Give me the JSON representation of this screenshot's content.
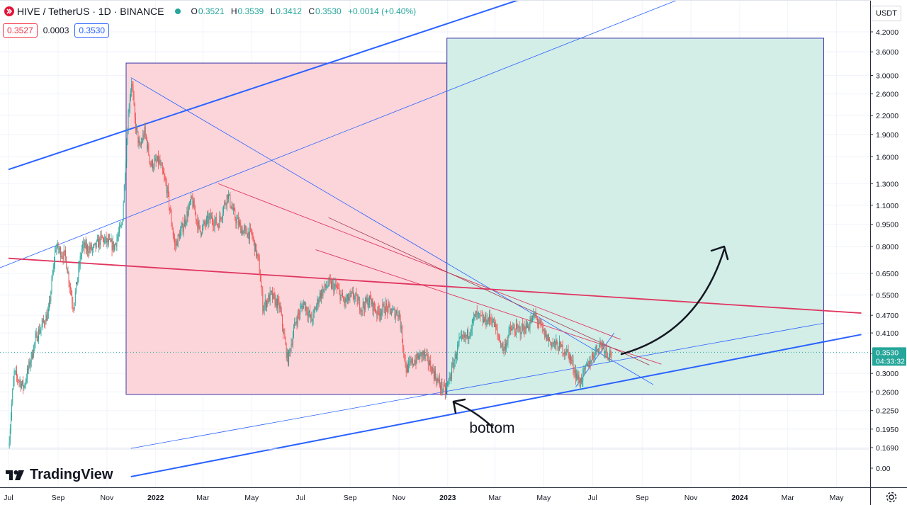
{
  "header": {
    "symbol": "HIVE / TetherUS · 1D · BINANCE",
    "o_label": "O",
    "o_value": "0.3521",
    "h_label": "H",
    "h_value": "0.3539",
    "l_label": "L",
    "l_value": "0.3412",
    "c_label": "C",
    "c_value": "0.3530",
    "change": "+0.0014 (+0.40%)"
  },
  "quote": {
    "sell": "0.3527",
    "spread": "0.0003",
    "buy": "0.3530"
  },
  "currency_button": "USDT",
  "brand": "TradingView",
  "last_price": {
    "value": "0.3530",
    "countdown": "04:33:32"
  },
  "colors": {
    "up": "#26a69a",
    "down": "#ef5350",
    "loss_box": "#fbd3d8",
    "target_box": "#d1ece6",
    "trend_blue": "#2962ff",
    "trend_red": "#e0355f"
  },
  "chart_data": {
    "type": "candlestick",
    "title": "HIVE / TetherUS · 1D · BINANCE",
    "y_scale": "log",
    "y_ticks": [
      "4.2000",
      "3.6000",
      "3.0000",
      "2.6000",
      "2.2000",
      "1.9000",
      "1.6000",
      "1.3000",
      "1.1000",
      "0.9500",
      "0.8000",
      "0.6500",
      "0.5500",
      "0.4700",
      "0.4100",
      "0.3500",
      "0.3000",
      "0.2600",
      "0.2250",
      "0.1950",
      "0.1690"
    ],
    "sub_y_tick": "0.00",
    "x_ticks": [
      "Jul",
      "Sep",
      "Nov",
      "2022",
      "Mar",
      "May",
      "Jul",
      "Sep",
      "Nov",
      "2023",
      "Mar",
      "May",
      "Jul",
      "Sep",
      "Nov",
      "2024",
      "Mar",
      "May"
    ],
    "x_bold_ticks": [
      "2022",
      "2023",
      "2024"
    ],
    "price_path": [
      [
        "2021-07-01",
        0.17
      ],
      [
        "2021-07-08",
        0.3
      ],
      [
        "2021-07-20",
        0.27
      ],
      [
        "2021-08-05",
        0.4
      ],
      [
        "2021-08-20",
        0.48
      ],
      [
        "2021-08-29",
        0.8
      ],
      [
        "2021-09-10",
        0.74
      ],
      [
        "2021-09-20",
        0.5
      ],
      [
        "2021-10-01",
        0.8
      ],
      [
        "2021-10-15",
        0.78
      ],
      [
        "2021-10-25",
        0.85
      ],
      [
        "2021-11-10",
        0.8
      ],
      [
        "2021-11-20",
        0.95
      ],
      [
        "2021-11-28",
        2.3
      ],
      [
        "2021-12-02",
        2.9
      ],
      [
        "2021-12-06",
        2.1
      ],
      [
        "2021-12-12",
        1.7
      ],
      [
        "2021-12-18",
        1.95
      ],
      [
        "2021-12-26",
        1.5
      ],
      [
        "2022-01-05",
        1.55
      ],
      [
        "2022-01-15",
        1.25
      ],
      [
        "2022-01-25",
        0.8
      ],
      [
        "2022-02-05",
        0.95
      ],
      [
        "2022-02-15",
        1.15
      ],
      [
        "2022-02-25",
        0.9
      ],
      [
        "2022-03-10",
        1.0
      ],
      [
        "2022-03-20",
        0.95
      ],
      [
        "2022-04-01",
        1.2
      ],
      [
        "2022-04-10",
        1.0
      ],
      [
        "2022-04-20",
        0.9
      ],
      [
        "2022-05-01",
        0.88
      ],
      [
        "2022-05-10",
        0.7
      ],
      [
        "2022-05-15",
        0.5
      ],
      [
        "2022-05-25",
        0.55
      ],
      [
        "2022-06-05",
        0.5
      ],
      [
        "2022-06-15",
        0.33
      ],
      [
        "2022-06-25",
        0.45
      ],
      [
        "2022-07-05",
        0.52
      ],
      [
        "2022-07-15",
        0.45
      ],
      [
        "2022-07-25",
        0.55
      ],
      [
        "2022-08-05",
        0.6
      ],
      [
        "2022-08-15",
        0.58
      ],
      [
        "2022-08-25",
        0.52
      ],
      [
        "2022-09-05",
        0.55
      ],
      [
        "2022-09-15",
        0.5
      ],
      [
        "2022-09-25",
        0.53
      ],
      [
        "2022-10-05",
        0.48
      ],
      [
        "2022-10-15",
        0.5
      ],
      [
        "2022-10-25",
        0.48
      ],
      [
        "2022-11-01",
        0.48
      ],
      [
        "2022-11-10",
        0.31
      ],
      [
        "2022-11-20",
        0.33
      ],
      [
        "2022-12-01",
        0.35
      ],
      [
        "2022-12-10",
        0.32
      ],
      [
        "2022-12-20",
        0.28
      ],
      [
        "2022-12-29",
        0.26
      ],
      [
        "2023-01-05",
        0.3
      ],
      [
        "2023-01-15",
        0.38
      ],
      [
        "2023-01-25",
        0.4
      ],
      [
        "2023-02-05",
        0.47
      ],
      [
        "2023-02-15",
        0.45
      ],
      [
        "2023-02-25",
        0.46
      ],
      [
        "2023-03-05",
        0.4
      ],
      [
        "2023-03-12",
        0.36
      ],
      [
        "2023-03-20",
        0.42
      ],
      [
        "2023-04-01",
        0.42
      ],
      [
        "2023-04-10",
        0.43
      ],
      [
        "2023-04-20",
        0.47
      ],
      [
        "2023-05-01",
        0.41
      ],
      [
        "2023-05-10",
        0.38
      ],
      [
        "2023-05-20",
        0.37
      ],
      [
        "2023-06-01",
        0.35
      ],
      [
        "2023-06-10",
        0.3
      ],
      [
        "2023-06-15",
        0.28
      ],
      [
        "2023-06-25",
        0.32
      ],
      [
        "2023-07-05",
        0.36
      ],
      [
        "2023-07-12",
        0.38
      ],
      [
        "2023-07-20",
        0.35
      ],
      [
        "2023-07-25",
        0.353
      ]
    ],
    "position_boxes": [
      {
        "kind": "loss",
        "from": "2021-11-25",
        "to": "2022-12-31",
        "low": 0.255,
        "high": 3.3
      },
      {
        "kind": "target",
        "from": "2022-12-31",
        "to": "2024-04-15",
        "low": 0.255,
        "high": 4.0
      }
    ],
    "annotations": [
      {
        "text": "bottom",
        "date": "2023-01-28",
        "price": 0.197
      }
    ]
  }
}
